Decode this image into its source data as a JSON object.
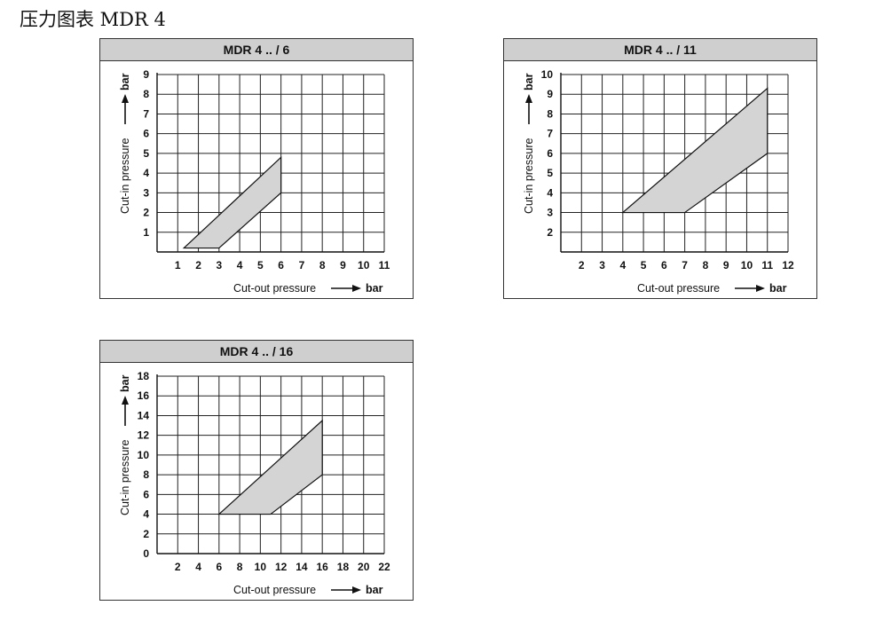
{
  "page": {
    "title": "压力图表 MDR 4"
  },
  "chart_data": [
    {
      "type": "area",
      "title": "MDR 4 .. / 6",
      "xlabel": "Cut-out pressure",
      "ylabel": "Cut-in pressure",
      "xunit": "bar",
      "yunit": "bar",
      "xlim": [
        0,
        11
      ],
      "ylim": [
        0,
        9
      ],
      "xticks": [
        1,
        2,
        3,
        4,
        5,
        6,
        7,
        8,
        9,
        10,
        11
      ],
      "yticks": [
        1,
        2,
        3,
        4,
        5,
        6,
        7,
        8,
        9
      ],
      "grid": true,
      "polygon": [
        [
          1.3,
          0.2
        ],
        [
          3.0,
          0.2
        ],
        [
          6.0,
          3.0
        ],
        [
          6.0,
          4.8
        ]
      ]
    },
    {
      "type": "area",
      "title": "MDR 4 .. / 11",
      "xlabel": "Cut-out pressure",
      "ylabel": "Cut-in pressure",
      "xunit": "bar",
      "yunit": "bar",
      "xlim": [
        1,
        12
      ],
      "ylim": [
        1,
        10
      ],
      "xticks": [
        2,
        3,
        4,
        5,
        6,
        7,
        8,
        9,
        10,
        11,
        12
      ],
      "yticks": [
        2,
        3,
        4,
        5,
        6,
        7,
        8,
        9,
        10
      ],
      "grid": true,
      "polygon": [
        [
          4.0,
          3.0
        ],
        [
          7.0,
          3.0
        ],
        [
          11.0,
          6.0
        ],
        [
          11.0,
          9.3
        ]
      ]
    },
    {
      "type": "area",
      "title": "MDR 4 .. / 16",
      "xlabel": "Cut-out pressure",
      "ylabel": "Cut-in pressure",
      "xunit": "bar",
      "yunit": "bar",
      "xlim": [
        0,
        22
      ],
      "ylim": [
        0,
        18
      ],
      "xticks": [
        2,
        4,
        6,
        8,
        10,
        12,
        14,
        16,
        18,
        20,
        22
      ],
      "yticks": [
        0,
        2,
        4,
        6,
        8,
        10,
        12,
        14,
        16,
        18
      ],
      "grid": true,
      "polygon": [
        [
          6.0,
          4.0
        ],
        [
          11.0,
          4.0
        ],
        [
          16.0,
          8.0
        ],
        [
          16.0,
          13.5
        ]
      ]
    }
  ]
}
